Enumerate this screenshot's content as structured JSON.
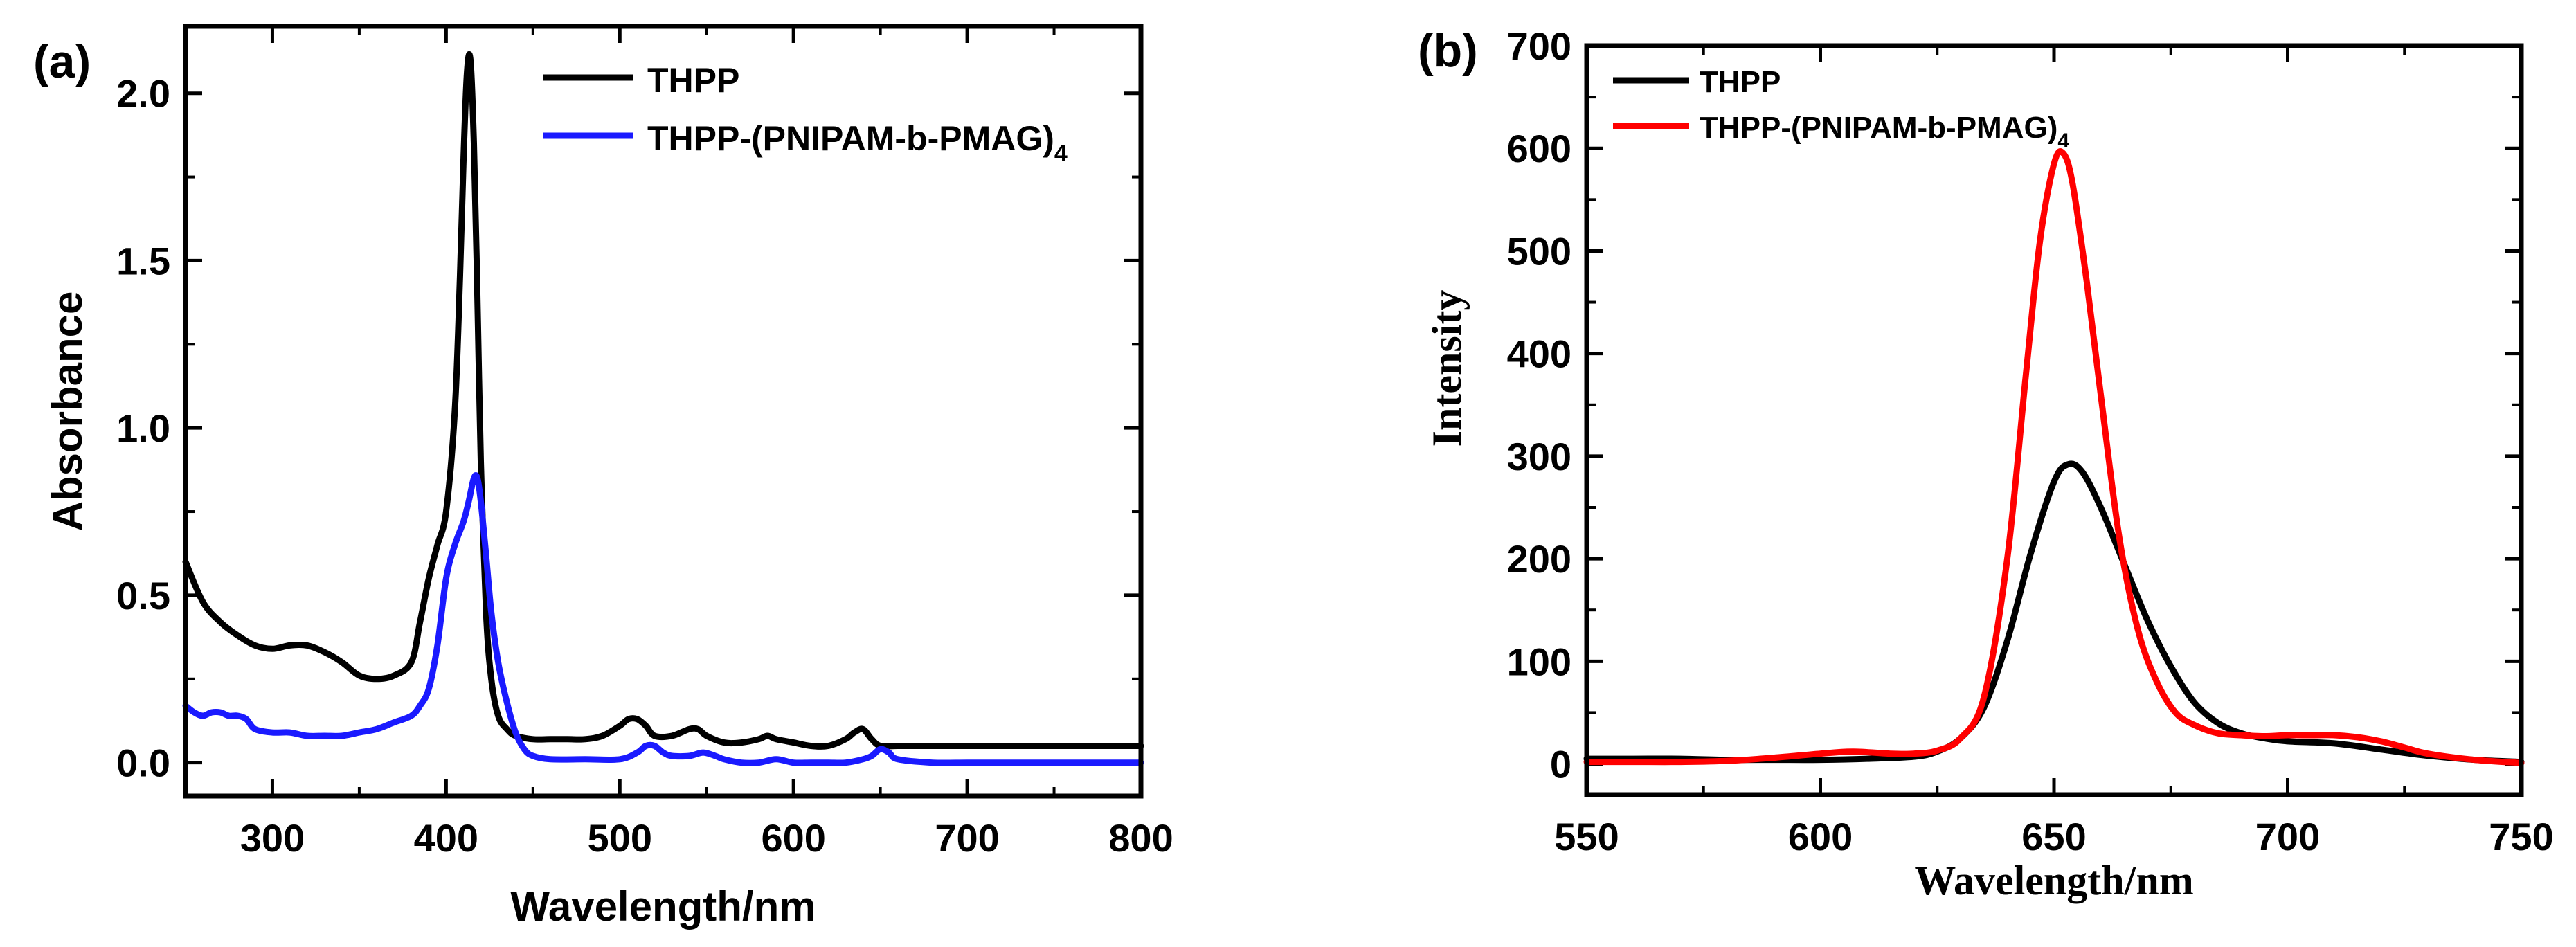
{
  "panels": {
    "a": {
      "label": "(a)"
    },
    "b": {
      "label": "(b)"
    }
  },
  "chart_data": [
    {
      "type": "line",
      "panel": "(a)",
      "title": "",
      "xlabel": "Wavelength/nm",
      "ylabel": "Absorbance",
      "xlim": [
        250,
        800
      ],
      "ylim": [
        -0.1,
        2.2
      ],
      "xticks": [
        300,
        400,
        500,
        600,
        700,
        800
      ],
      "xtick_labels": [
        "300",
        "400",
        "500",
        "600",
        "700",
        "800"
      ],
      "yticks": [
        0.0,
        0.5,
        1.0,
        1.5,
        2.0
      ],
      "ytick_labels": [
        "0.0",
        "0.5",
        "1.0",
        "1.5",
        "2.0"
      ],
      "grid": false,
      "legend_position": "top-right",
      "series": [
        {
          "name": "THPP",
          "legend_main": "THPP",
          "legend_sub": "",
          "color": "#000000",
          "x": [
            250,
            260,
            270,
            280,
            290,
            300,
            310,
            320,
            330,
            340,
            350,
            360,
            370,
            380,
            385,
            390,
            395,
            400,
            405,
            408,
            410,
            412,
            414,
            416,
            418,
            420,
            423,
            426,
            430,
            435,
            440,
            450,
            460,
            470,
            480,
            490,
            500,
            505,
            510,
            515,
            520,
            530,
            540,
            545,
            550,
            560,
            570,
            580,
            585,
            590,
            600,
            610,
            620,
            630,
            635,
            640,
            645,
            650,
            660,
            680,
            700,
            720,
            740,
            760,
            780,
            800
          ],
          "y": [
            0.6,
            0.48,
            0.42,
            0.38,
            0.35,
            0.34,
            0.35,
            0.35,
            0.33,
            0.3,
            0.26,
            0.25,
            0.26,
            0.3,
            0.42,
            0.55,
            0.65,
            0.75,
            1.05,
            1.45,
            1.8,
            2.06,
            2.1,
            1.85,
            1.4,
            0.9,
            0.45,
            0.25,
            0.14,
            0.1,
            0.08,
            0.07,
            0.07,
            0.07,
            0.07,
            0.08,
            0.11,
            0.13,
            0.13,
            0.11,
            0.08,
            0.08,
            0.1,
            0.1,
            0.08,
            0.06,
            0.06,
            0.07,
            0.08,
            0.07,
            0.06,
            0.05,
            0.05,
            0.07,
            0.09,
            0.1,
            0.07,
            0.05,
            0.05,
            0.05,
            0.05,
            0.05,
            0.05,
            0.05,
            0.05,
            0.05
          ]
        },
        {
          "name": "THPP-(PNIPAM-b-PMAG)4",
          "legend_main": "THPP-(PNIPAM-b-PMAG)",
          "legend_sub": "4",
          "color": "#1a1aff",
          "x": [
            250,
            255,
            260,
            265,
            270,
            275,
            280,
            285,
            290,
            300,
            310,
            320,
            330,
            340,
            350,
            360,
            370,
            380,
            385,
            390,
            395,
            400,
            405,
            410,
            413,
            416,
            418,
            420,
            423,
            426,
            430,
            435,
            440,
            445,
            450,
            460,
            480,
            500,
            510,
            515,
            520,
            525,
            530,
            540,
            548,
            555,
            560,
            570,
            580,
            590,
            600,
            610,
            620,
            630,
            640,
            645,
            650,
            655,
            660,
            680,
            700,
            720,
            740,
            760,
            780,
            800
          ],
          "y": [
            0.17,
            0.15,
            0.14,
            0.15,
            0.15,
            0.14,
            0.14,
            0.13,
            0.1,
            0.09,
            0.09,
            0.08,
            0.08,
            0.08,
            0.09,
            0.1,
            0.12,
            0.14,
            0.17,
            0.22,
            0.35,
            0.55,
            0.65,
            0.72,
            0.78,
            0.85,
            0.85,
            0.78,
            0.62,
            0.45,
            0.3,
            0.18,
            0.09,
            0.04,
            0.02,
            0.01,
            0.01,
            0.01,
            0.03,
            0.05,
            0.05,
            0.03,
            0.02,
            0.02,
            0.03,
            0.02,
            0.01,
            0.0,
            0.0,
            0.01,
            0.0,
            0.0,
            0.0,
            0.0,
            0.01,
            0.02,
            0.04,
            0.03,
            0.01,
            0.0,
            0.0,
            0.0,
            0.0,
            0.0,
            0.0,
            0.0
          ]
        }
      ]
    },
    {
      "type": "line",
      "panel": "(b)",
      "title": "",
      "xlabel": "Wavelength/nm",
      "ylabel": "Intensity",
      "xlim": [
        550,
        750
      ],
      "ylim": [
        -30,
        700
      ],
      "xticks": [
        550,
        600,
        650,
        700,
        750
      ],
      "xtick_labels": [
        "550",
        "600",
        "650",
        "700",
        "750"
      ],
      "yticks": [
        0,
        100,
        200,
        300,
        400,
        500,
        600,
        700
      ],
      "ytick_labels": [
        "0",
        "100",
        "200",
        "300",
        "400",
        "500",
        "600",
        "700"
      ],
      "grid": false,
      "legend_position": "top-left",
      "series": [
        {
          "name": "THPP",
          "legend_main": "THPP",
          "legend_sub": "",
          "color": "#000000",
          "x": [
            550,
            560,
            570,
            580,
            590,
            600,
            610,
            620,
            625,
            630,
            635,
            640,
            645,
            650,
            653,
            656,
            660,
            665,
            670,
            675,
            680,
            685,
            690,
            695,
            700,
            710,
            720,
            730,
            740,
            750
          ],
          "y": [
            5,
            5,
            5,
            4,
            4,
            4,
            5,
            7,
            12,
            25,
            55,
            120,
            205,
            275,
            292,
            285,
            250,
            195,
            140,
            95,
            60,
            40,
            30,
            25,
            22,
            20,
            14,
            8,
            4,
            2
          ]
        },
        {
          "name": "THPP-(PNIPAM-b-PMAG)4",
          "legend_main": "THPP-(PNIPAM-b-PMAG)",
          "legend_sub": "4",
          "color": "#ff0000",
          "x": [
            550,
            560,
            570,
            580,
            590,
            600,
            607,
            615,
            620,
            625,
            630,
            635,
            640,
            644,
            647,
            650,
            652,
            654,
            657,
            660,
            664,
            668,
            672,
            676,
            680,
            685,
            690,
            695,
            700,
            705,
            710,
            715,
            720,
            725,
            730,
            740,
            750
          ],
          "y": [
            2,
            2,
            2,
            3,
            6,
            10,
            12,
            10,
            10,
            13,
            25,
            65,
            200,
            380,
            510,
            585,
            595,
            565,
            470,
            360,
            220,
            130,
            80,
            50,
            38,
            30,
            28,
            27,
            28,
            28,
            28,
            26,
            22,
            16,
            10,
            4,
            1
          ]
        }
      ]
    }
  ]
}
